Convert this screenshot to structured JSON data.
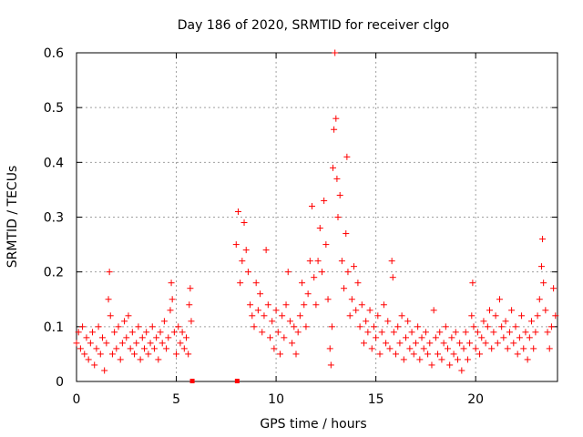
{
  "chart_data": {
    "type": "scatter",
    "title": "Day 186 of 2020, SRMTID for receiver clgo",
    "xlabel": "GPS time / hours",
    "ylabel": "SRMTID / TECUs",
    "xlim": [
      0,
      24.1
    ],
    "ylim": [
      0,
      0.6
    ],
    "x_ticks": [
      0,
      5,
      10,
      15,
      20
    ],
    "y_ticks": [
      0,
      0.1,
      0.2,
      0.3,
      0.4,
      0.5,
      0.6
    ],
    "x_tick_labels": [
      "0",
      "5",
      "10",
      "15",
      "20"
    ],
    "y_tick_labels": [
      "0",
      "0.1",
      "0.2",
      "0.3",
      "0.4",
      "0.5",
      "0.6"
    ],
    "grid": true,
    "marker_color": "#ff0000",
    "segment_markers": [
      [
        5.8,
        0.0
      ],
      [
        8.05,
        0.0
      ]
    ],
    "series": [
      {
        "name": "SRMTID",
        "marker": "plus",
        "points": [
          [
            0.0,
            0.07
          ],
          [
            0.1,
            0.09
          ],
          [
            0.2,
            0.06
          ],
          [
            0.3,
            0.1
          ],
          [
            0.4,
            0.05
          ],
          [
            0.5,
            0.08
          ],
          [
            0.6,
            0.04
          ],
          [
            0.7,
            0.07
          ],
          [
            0.8,
            0.09
          ],
          [
            0.9,
            0.03
          ],
          [
            1.0,
            0.06
          ],
          [
            1.1,
            0.1
          ],
          [
            1.2,
            0.05
          ],
          [
            1.3,
            0.08
          ],
          [
            1.4,
            0.02
          ],
          [
            1.5,
            0.07
          ],
          [
            1.6,
            0.15
          ],
          [
            1.65,
            0.2
          ],
          [
            1.7,
            0.12
          ],
          [
            1.8,
            0.05
          ],
          [
            1.9,
            0.09
          ],
          [
            2.0,
            0.06
          ],
          [
            2.1,
            0.1
          ],
          [
            2.2,
            0.04
          ],
          [
            2.3,
            0.07
          ],
          [
            2.4,
            0.11
          ],
          [
            2.5,
            0.08
          ],
          [
            2.6,
            0.12
          ],
          [
            2.7,
            0.06
          ],
          [
            2.8,
            0.09
          ],
          [
            2.9,
            0.05
          ],
          [
            3.0,
            0.07
          ],
          [
            3.1,
            0.1
          ],
          [
            3.2,
            0.04
          ],
          [
            3.3,
            0.08
          ],
          [
            3.4,
            0.06
          ],
          [
            3.5,
            0.09
          ],
          [
            3.6,
            0.05
          ],
          [
            3.7,
            0.07
          ],
          [
            3.8,
            0.1
          ],
          [
            3.9,
            0.06
          ],
          [
            4.0,
            0.08
          ],
          [
            4.1,
            0.04
          ],
          [
            4.2,
            0.09
          ],
          [
            4.3,
            0.07
          ],
          [
            4.4,
            0.11
          ],
          [
            4.5,
            0.06
          ],
          [
            4.6,
            0.08
          ],
          [
            4.7,
            0.13
          ],
          [
            4.75,
            0.18
          ],
          [
            4.8,
            0.15
          ],
          [
            4.9,
            0.09
          ],
          [
            5.0,
            0.05
          ],
          [
            5.1,
            0.1
          ],
          [
            5.2,
            0.07
          ],
          [
            5.3,
            0.09
          ],
          [
            5.4,
            0.06
          ],
          [
            5.5,
            0.08
          ],
          [
            5.6,
            0.05
          ],
          [
            5.65,
            0.14
          ],
          [
            5.7,
            0.17
          ],
          [
            5.75,
            0.11
          ],
          [
            8.0,
            0.25
          ],
          [
            8.1,
            0.31
          ],
          [
            8.2,
            0.18
          ],
          [
            8.3,
            0.22
          ],
          [
            8.4,
            0.29
          ],
          [
            8.5,
            0.24
          ],
          [
            8.6,
            0.2
          ],
          [
            8.7,
            0.14
          ],
          [
            8.8,
            0.12
          ],
          [
            8.9,
            0.1
          ],
          [
            9.0,
            0.18
          ],
          [
            9.1,
            0.13
          ],
          [
            9.2,
            0.16
          ],
          [
            9.3,
            0.09
          ],
          [
            9.4,
            0.12
          ],
          [
            9.5,
            0.24
          ],
          [
            9.6,
            0.14
          ],
          [
            9.7,
            0.08
          ],
          [
            9.8,
            0.11
          ],
          [
            9.9,
            0.06
          ],
          [
            10.0,
            0.13
          ],
          [
            10.1,
            0.09
          ],
          [
            10.2,
            0.05
          ],
          [
            10.3,
            0.12
          ],
          [
            10.4,
            0.08
          ],
          [
            10.5,
            0.14
          ],
          [
            10.6,
            0.2
          ],
          [
            10.7,
            0.11
          ],
          [
            10.8,
            0.07
          ],
          [
            10.9,
            0.1
          ],
          [
            11.0,
            0.05
          ],
          [
            11.1,
            0.09
          ],
          [
            11.2,
            0.12
          ],
          [
            11.3,
            0.18
          ],
          [
            11.4,
            0.14
          ],
          [
            11.5,
            0.1
          ],
          [
            11.6,
            0.16
          ],
          [
            11.7,
            0.22
          ],
          [
            11.8,
            0.32
          ],
          [
            11.9,
            0.19
          ],
          [
            12.0,
            0.14
          ],
          [
            12.1,
            0.22
          ],
          [
            12.2,
            0.28
          ],
          [
            12.3,
            0.2
          ],
          [
            12.4,
            0.33
          ],
          [
            12.5,
            0.25
          ],
          [
            12.6,
            0.15
          ],
          [
            12.7,
            0.06
          ],
          [
            12.75,
            0.03
          ],
          [
            12.8,
            0.1
          ],
          [
            12.85,
            0.39
          ],
          [
            12.9,
            0.46
          ],
          [
            12.95,
            0.6
          ],
          [
            13.0,
            0.48
          ],
          [
            13.05,
            0.37
          ],
          [
            13.1,
            0.3
          ],
          [
            13.2,
            0.34
          ],
          [
            13.3,
            0.22
          ],
          [
            13.4,
            0.17
          ],
          [
            13.5,
            0.27
          ],
          [
            13.55,
            0.41
          ],
          [
            13.6,
            0.2
          ],
          [
            13.7,
            0.12
          ],
          [
            13.8,
            0.15
          ],
          [
            13.9,
            0.21
          ],
          [
            14.0,
            0.13
          ],
          [
            14.1,
            0.18
          ],
          [
            14.2,
            0.1
          ],
          [
            14.3,
            0.14
          ],
          [
            14.4,
            0.07
          ],
          [
            14.5,
            0.11
          ],
          [
            14.6,
            0.09
          ],
          [
            14.7,
            0.13
          ],
          [
            14.8,
            0.06
          ],
          [
            14.9,
            0.1
          ],
          [
            15.0,
            0.08
          ],
          [
            15.1,
            0.12
          ],
          [
            15.2,
            0.05
          ],
          [
            15.3,
            0.09
          ],
          [
            15.4,
            0.14
          ],
          [
            15.5,
            0.07
          ],
          [
            15.6,
            0.11
          ],
          [
            15.7,
            0.06
          ],
          [
            15.8,
            0.22
          ],
          [
            15.85,
            0.19
          ],
          [
            15.9,
            0.09
          ],
          [
            16.0,
            0.05
          ],
          [
            16.1,
            0.1
          ],
          [
            16.2,
            0.07
          ],
          [
            16.3,
            0.12
          ],
          [
            16.4,
            0.04
          ],
          [
            16.5,
            0.08
          ],
          [
            16.6,
            0.11
          ],
          [
            16.7,
            0.06
          ],
          [
            16.8,
            0.09
          ],
          [
            16.9,
            0.05
          ],
          [
            17.0,
            0.07
          ],
          [
            17.1,
            0.1
          ],
          [
            17.2,
            0.04
          ],
          [
            17.3,
            0.08
          ],
          [
            17.4,
            0.06
          ],
          [
            17.5,
            0.09
          ],
          [
            17.6,
            0.05
          ],
          [
            17.7,
            0.07
          ],
          [
            17.8,
            0.03
          ],
          [
            17.9,
            0.13
          ],
          [
            18.0,
            0.08
          ],
          [
            18.1,
            0.05
          ],
          [
            18.2,
            0.09
          ],
          [
            18.3,
            0.04
          ],
          [
            18.4,
            0.07
          ],
          [
            18.5,
            0.1
          ],
          [
            18.6,
            0.06
          ],
          [
            18.7,
            0.03
          ],
          [
            18.8,
            0.08
          ],
          [
            18.9,
            0.05
          ],
          [
            19.0,
            0.09
          ],
          [
            19.1,
            0.04
          ],
          [
            19.2,
            0.07
          ],
          [
            19.3,
            0.02
          ],
          [
            19.4,
            0.06
          ],
          [
            19.5,
            0.09
          ],
          [
            19.6,
            0.04
          ],
          [
            19.7,
            0.07
          ],
          [
            19.8,
            0.12
          ],
          [
            19.85,
            0.18
          ],
          [
            19.9,
            0.1
          ],
          [
            20.0,
            0.06
          ],
          [
            20.1,
            0.09
          ],
          [
            20.2,
            0.05
          ],
          [
            20.3,
            0.08
          ],
          [
            20.4,
            0.11
          ],
          [
            20.5,
            0.07
          ],
          [
            20.6,
            0.1
          ],
          [
            20.7,
            0.13
          ],
          [
            20.8,
            0.06
          ],
          [
            20.9,
            0.09
          ],
          [
            21.0,
            0.12
          ],
          [
            21.1,
            0.07
          ],
          [
            21.2,
            0.15
          ],
          [
            21.3,
            0.1
          ],
          [
            21.4,
            0.08
          ],
          [
            21.5,
            0.11
          ],
          [
            21.6,
            0.06
          ],
          [
            21.7,
            0.09
          ],
          [
            21.8,
            0.13
          ],
          [
            21.9,
            0.07
          ],
          [
            22.0,
            0.1
          ],
          [
            22.1,
            0.05
          ],
          [
            22.2,
            0.08
          ],
          [
            22.3,
            0.12
          ],
          [
            22.4,
            0.06
          ],
          [
            22.5,
            0.09
          ],
          [
            22.6,
            0.04
          ],
          [
            22.7,
            0.08
          ],
          [
            22.8,
            0.11
          ],
          [
            22.9,
            0.06
          ],
          [
            23.0,
            0.09
          ],
          [
            23.1,
            0.12
          ],
          [
            23.2,
            0.15
          ],
          [
            23.3,
            0.21
          ],
          [
            23.35,
            0.26
          ],
          [
            23.4,
            0.18
          ],
          [
            23.5,
            0.13
          ],
          [
            23.6,
            0.09
          ],
          [
            23.7,
            0.06
          ],
          [
            23.8,
            0.1
          ],
          [
            23.9,
            0.17
          ],
          [
            24.0,
            0.12
          ]
        ]
      }
    ]
  }
}
